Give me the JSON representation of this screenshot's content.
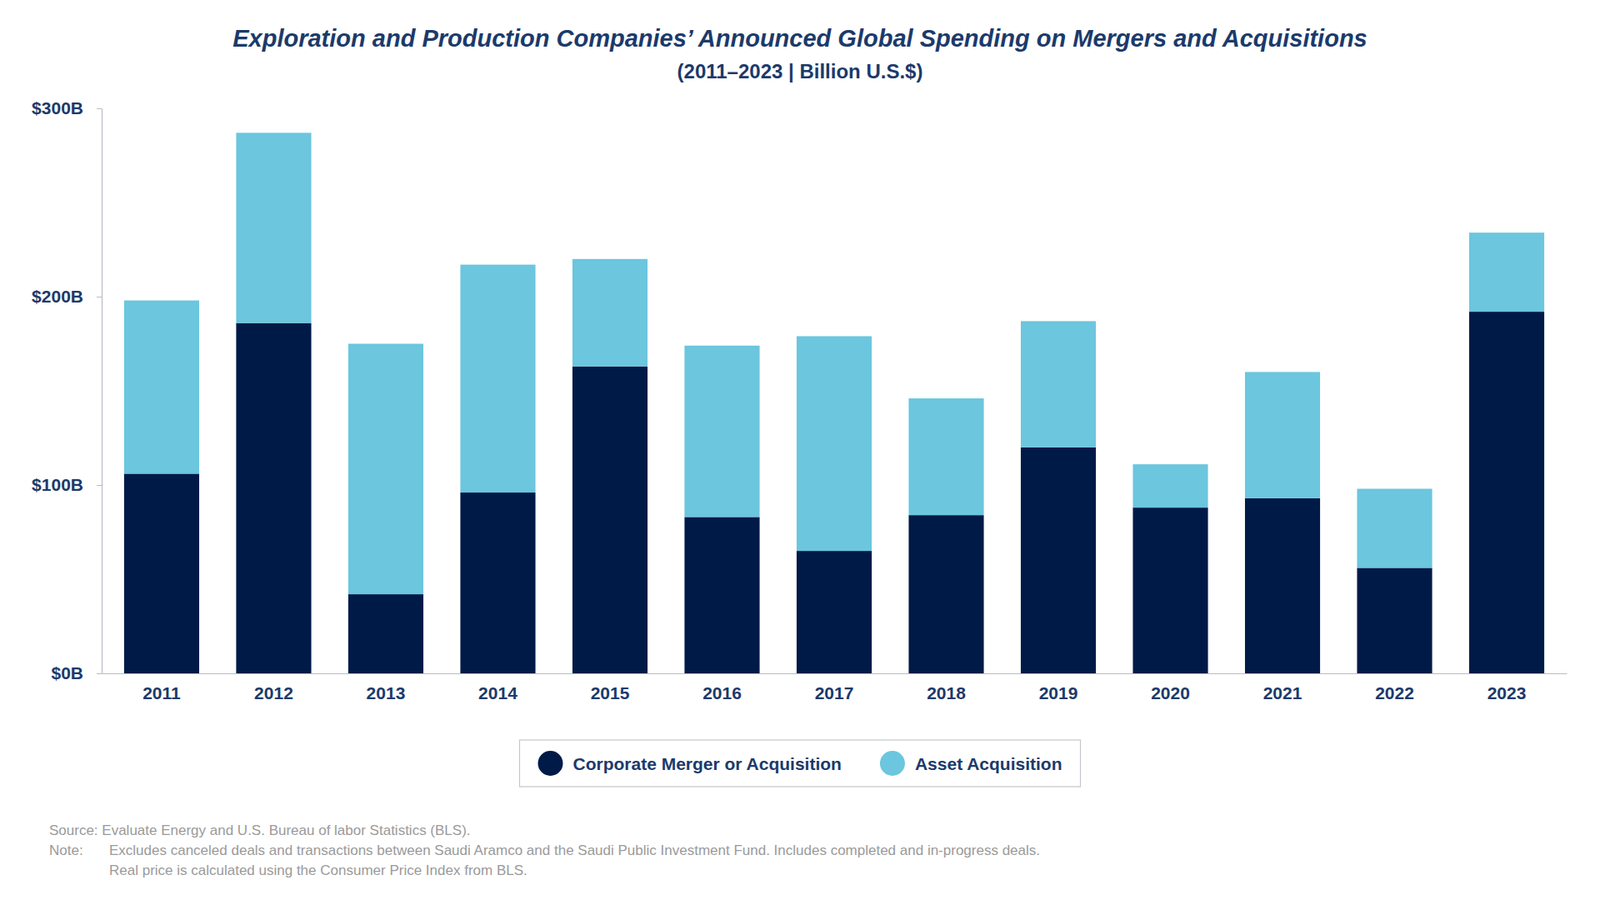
{
  "chart_data": {
    "type": "bar",
    "title": "Exploration and Production Companies’ Announced Global Spending on Mergers and Acquisitions",
    "subtitle": "(2011–2023 | Billion U.S.$)",
    "categories": [
      "2011",
      "2012",
      "2013",
      "2014",
      "2015",
      "2016",
      "2017",
      "2018",
      "2019",
      "2020",
      "2021",
      "2022",
      "2023"
    ],
    "series": [
      {
        "name": "Corporate Merger or Acquisition",
        "color": "#001a47",
        "values": [
          106,
          186,
          42,
          96,
          163,
          83,
          65,
          84,
          120,
          88,
          93,
          56,
          192
        ]
      },
      {
        "name": "Asset Acquisition",
        "color": "#6bc6de",
        "values": [
          92,
          101,
          133,
          121,
          57,
          91,
          114,
          62,
          67,
          23,
          67,
          42,
          42
        ]
      }
    ],
    "stacked": true,
    "ylim": [
      0,
      300
    ],
    "yticks": [
      {
        "value": 0,
        "label": "$0B"
      },
      {
        "value": 100,
        "label": "$100B"
      },
      {
        "value": 200,
        "label": "$200B"
      },
      {
        "value": 300,
        "label": "$300B"
      }
    ],
    "grid": false,
    "legend": "bottom",
    "source": "Source: Evaluate Energy and U.S. Bureau of labor Statistics (BLS).",
    "note_label": "Note:",
    "notes": [
      "Excludes canceled deals and transactions between Saudi Aramco and the Saudi Public Investment Fund. Includes completed and in-progress deals.",
      "Real price is calculated using the Consumer Price Index from BLS."
    ]
  }
}
